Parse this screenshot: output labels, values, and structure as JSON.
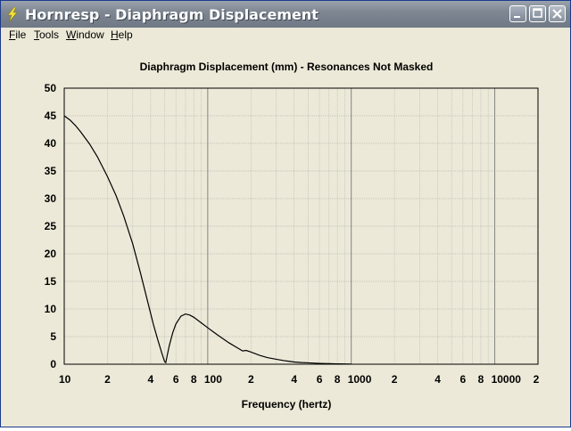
{
  "window": {
    "title": "Hornresp - Diaphragm Displacement",
    "buttons": [
      "minimize",
      "maximize",
      "close"
    ],
    "title_icon": "lightning-bolt-icon"
  },
  "menu": [
    {
      "label": "File",
      "accel": "F",
      "rest": "ile"
    },
    {
      "label": "Tools",
      "accel": "T",
      "rest": "ools"
    },
    {
      "label": "Window",
      "accel": "W",
      "rest": "indow"
    },
    {
      "label": "Help",
      "accel": "H",
      "rest": "elp"
    }
  ],
  "chart_data": {
    "type": "line",
    "title": "Diaphragm Displacement (mm) - Resonances Not Masked",
    "xlabel": "Frequency (hertz)",
    "ylabel": "",
    "xscale": "log",
    "xlim": [
      10,
      20000
    ],
    "ylim": [
      0,
      50
    ],
    "yticks": [
      0,
      5,
      10,
      15,
      20,
      25,
      30,
      35,
      40,
      45,
      50
    ],
    "xtick_labels": [
      {
        "value": 10,
        "label": "10"
      },
      {
        "value": 20,
        "label": "2"
      },
      {
        "value": 40,
        "label": "4"
      },
      {
        "value": 60,
        "label": "6"
      },
      {
        "value": 80,
        "label": "8"
      },
      {
        "value": 100,
        "label": "100"
      },
      {
        "value": 200,
        "label": "2"
      },
      {
        "value": 400,
        "label": "4"
      },
      {
        "value": 600,
        "label": "6"
      },
      {
        "value": 800,
        "label": "8"
      },
      {
        "value": 1000,
        "label": "1000"
      },
      {
        "value": 2000,
        "label": "2"
      },
      {
        "value": 4000,
        "label": "4"
      },
      {
        "value": 6000,
        "label": "6"
      },
      {
        "value": 8000,
        "label": "8"
      },
      {
        "value": 10000,
        "label": "10000"
      },
      {
        "value": 20000,
        "label": "2"
      }
    ],
    "grid": true,
    "line_color": "#000000",
    "series": [
      {
        "x": [
          10,
          11,
          12,
          13,
          15,
          17,
          20,
          23,
          26,
          30,
          34,
          38,
          42,
          45,
          48,
          50,
          51,
          52,
          54,
          57,
          60,
          65,
          70,
          75,
          80,
          90,
          100,
          110,
          120,
          140,
          160,
          175,
          185,
          200,
          230,
          260,
          300,
          350,
          400,
          450,
          500,
          600,
          700,
          800,
          900,
          1000
        ],
        "y": [
          45.0,
          44.2,
          43.2,
          42.1,
          39.9,
          37.6,
          34.0,
          30.5,
          26.8,
          21.8,
          16.5,
          11.5,
          7.0,
          4.3,
          1.9,
          0.5,
          0.3,
          1.4,
          3.4,
          5.7,
          7.3,
          8.7,
          9.1,
          8.9,
          8.5,
          7.5,
          6.6,
          5.8,
          5.1,
          3.9,
          3.0,
          2.4,
          2.5,
          2.2,
          1.6,
          1.2,
          0.9,
          0.6,
          0.4,
          0.3,
          0.25,
          0.15,
          0.1,
          0.07,
          0.05,
          0.03
        ]
      }
    ]
  }
}
